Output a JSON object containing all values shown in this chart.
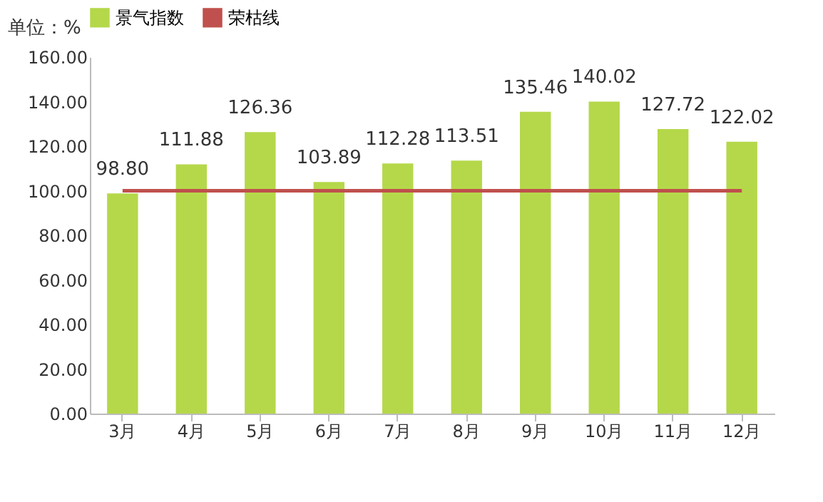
{
  "chart_data": {
    "type": "bar",
    "ylabel": "单位：%",
    "categories": [
      "3月",
      "4月",
      "5月",
      "6月",
      "7月",
      "8月",
      "9月",
      "10月",
      "11月",
      "12月"
    ],
    "series": [
      {
        "name": "景气指数",
        "color": "#b5d84a",
        "values": [
          98.8,
          111.88,
          126.36,
          103.89,
          112.28,
          113.51,
          135.46,
          140.02,
          127.72,
          122.02
        ],
        "value_labels": [
          "98.80",
          "111.88",
          "126.36",
          "103.89",
          "112.28",
          "113.51",
          "135.46",
          "140.02",
          "127.72",
          "122.02"
        ]
      },
      {
        "name": "荣枯线",
        "type": "line",
        "color": "#c0504d",
        "values": [
          100,
          100,
          100,
          100,
          100,
          100,
          100,
          100,
          100,
          100
        ]
      }
    ],
    "ylim": [
      0,
      160
    ],
    "yticks": [
      {
        "value": 0,
        "label": "0.00"
      },
      {
        "value": 20,
        "label": "20.00"
      },
      {
        "value": 40,
        "label": "40.00"
      },
      {
        "value": 60,
        "label": "60.00"
      },
      {
        "value": 80,
        "label": "80.00"
      },
      {
        "value": 100,
        "label": "100.00"
      },
      {
        "value": 120,
        "label": "120.00"
      },
      {
        "value": 140,
        "label": "140.00"
      },
      {
        "value": 160,
        "label": "160.00"
      }
    ],
    "grid": false,
    "legend": "top"
  }
}
